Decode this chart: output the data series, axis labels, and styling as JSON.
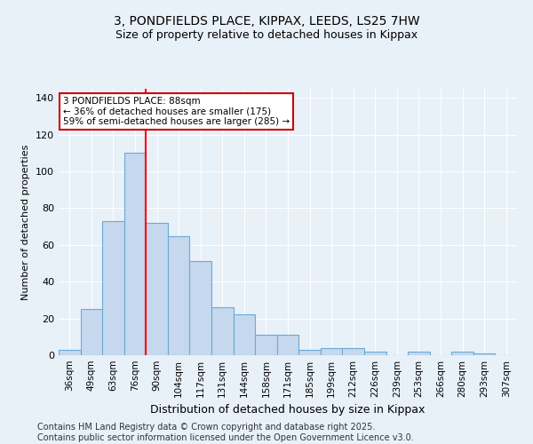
{
  "title1": "3, PONDFIELDS PLACE, KIPPAX, LEEDS, LS25 7HW",
  "title2": "Size of property relative to detached houses in Kippax",
  "xlabel": "Distribution of detached houses by size in Kippax",
  "ylabel": "Number of detached properties",
  "categories": [
    "36sqm",
    "49sqm",
    "63sqm",
    "76sqm",
    "90sqm",
    "104sqm",
    "117sqm",
    "131sqm",
    "144sqm",
    "158sqm",
    "171sqm",
    "185sqm",
    "199sqm",
    "212sqm",
    "226sqm",
    "239sqm",
    "253sqm",
    "266sqm",
    "280sqm",
    "293sqm",
    "307sqm"
  ],
  "values": [
    3,
    25,
    73,
    110,
    72,
    65,
    51,
    26,
    22,
    11,
    11,
    3,
    4,
    4,
    2,
    0,
    2,
    0,
    2,
    1,
    0
  ],
  "bar_color": "#c5d8ee",
  "bar_edge_color": "#6aaad4",
  "red_line_x": 3.5,
  "annotation_title": "3 PONDFIELDS PLACE: 88sqm",
  "annotation_line1": "← 36% of detached houses are smaller (175)",
  "annotation_line2": "59% of semi-detached houses are larger (285) →",
  "annotation_box_color": "#ffffff",
  "annotation_box_edge": "#cc0000",
  "footer": "Contains HM Land Registry data © Crown copyright and database right 2025.\nContains public sector information licensed under the Open Government Licence v3.0.",
  "ylim": [
    0,
    145
  ],
  "bg_color": "#e8f0f8",
  "plot_bg_color": "#e8f0f8",
  "grid_color": "#ffffff",
  "title_fontsize": 10,
  "subtitle_fontsize": 9,
  "footer_fontsize": 7,
  "yticks": [
    0,
    20,
    40,
    60,
    80,
    100,
    120,
    140
  ]
}
